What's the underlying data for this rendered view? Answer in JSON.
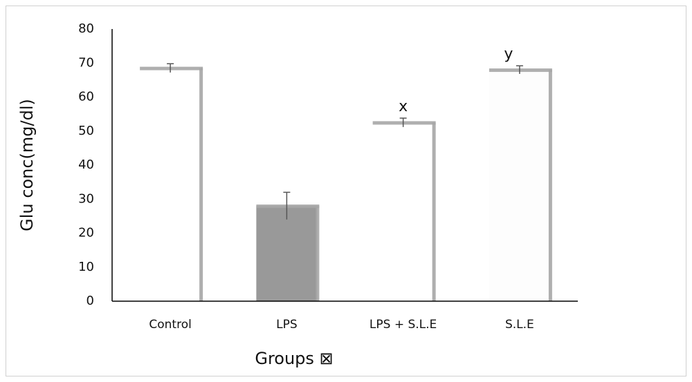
{
  "chart_data": {
    "type": "bar",
    "x_label": "Groups ⊠",
    "y_label": "Glu conc(mg/dl)",
    "categories": [
      "Control",
      "LPS",
      "LPS + S.L.E",
      "S.L.E"
    ],
    "values": [
      68.5,
      28,
      52.5,
      68
    ],
    "errors": [
      1.3,
      4,
      1.3,
      1.2
    ],
    "colors": [
      "#ffffff",
      "#999999",
      "#ffffff",
      "#fdfdfd"
    ],
    "edge_color": "#a6a6a6",
    "annotations": [
      {
        "text": "x",
        "category": "LPS + S.L.E"
      },
      {
        "text": "y",
        "category": "S.L.E"
      }
    ],
    "ylim": [
      0,
      80
    ],
    "yticks": [
      0,
      10,
      20,
      30,
      40,
      50,
      60,
      70,
      80
    ],
    "grid": false
  }
}
